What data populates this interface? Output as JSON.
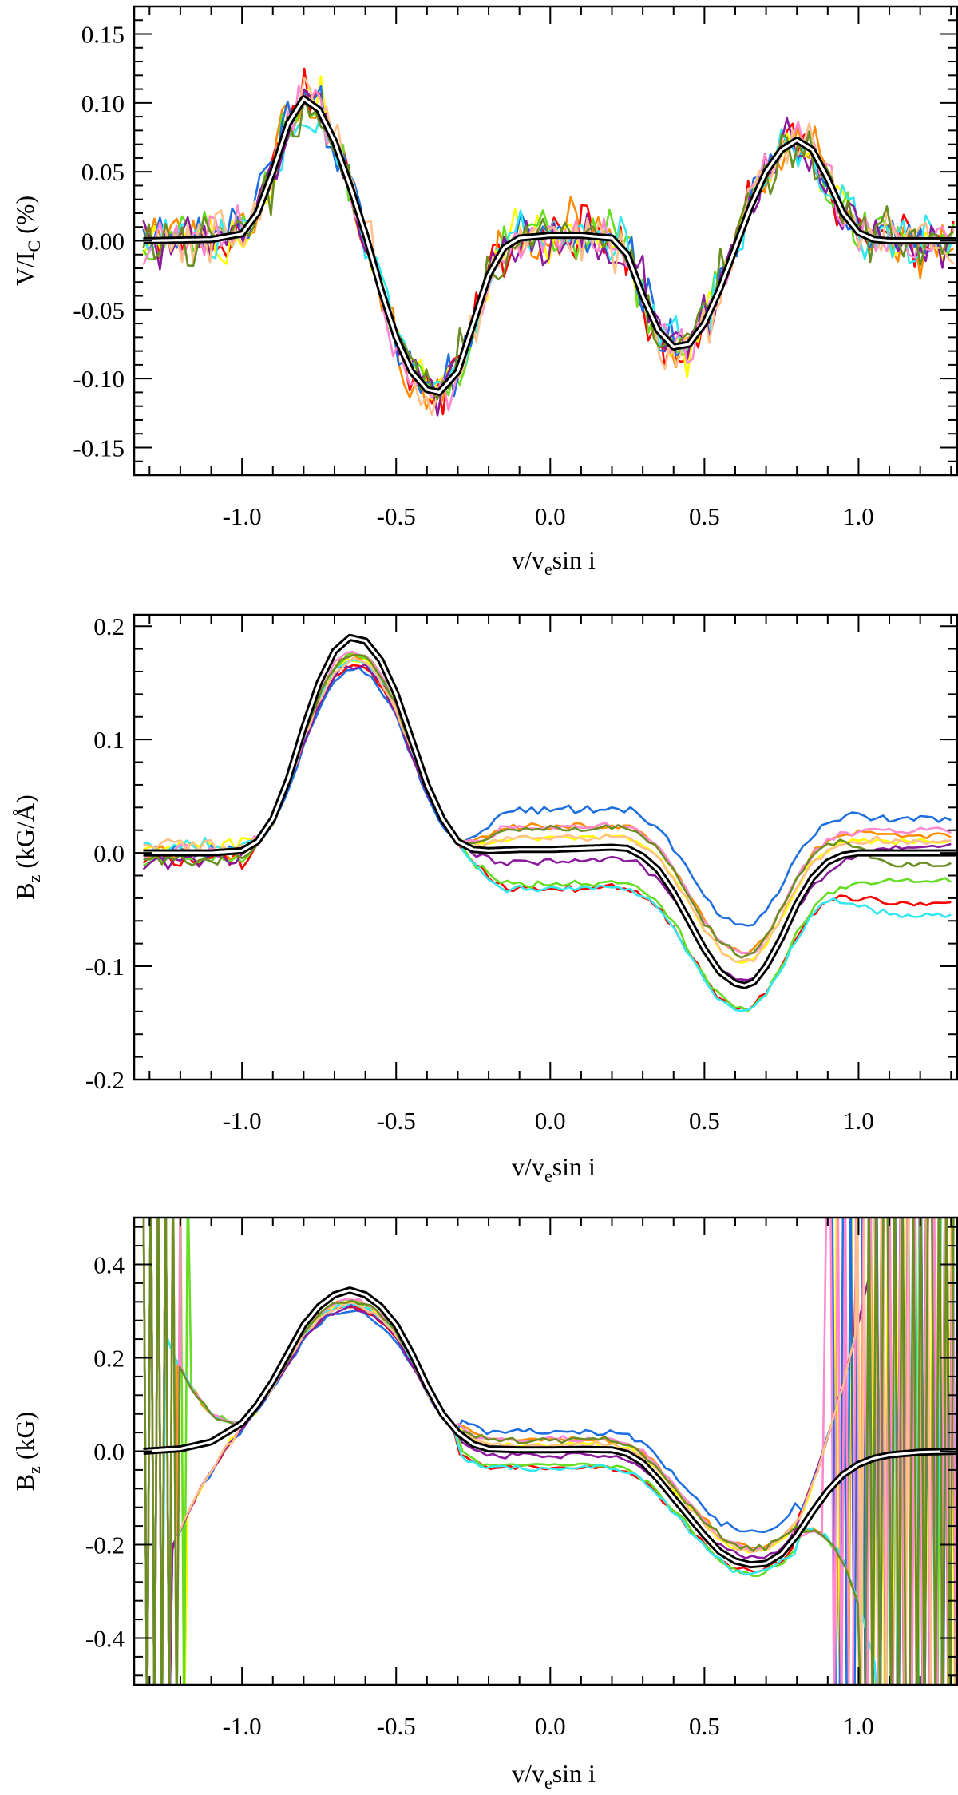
{
  "chart_data": [
    {
      "type": "line",
      "panel": "top",
      "xlabel": {
        "main": "v/v",
        "sub": "e",
        "tail": "sin i"
      },
      "ylabel": {
        "main": "V/I",
        "sub": "C",
        "tail": " (%)"
      },
      "xlim": [
        -1.35,
        1.32
      ],
      "ylim": [
        -0.17,
        0.17
      ],
      "xticks": [
        -1.0,
        -0.5,
        0.0,
        0.5,
        1.0
      ],
      "xtick_labels": [
        "-1.0",
        "-0.5",
        "0.0",
        "0.5",
        "1.0"
      ],
      "yticks": [
        0.15,
        0.1,
        0.05,
        0.0,
        -0.05,
        -0.1,
        -0.15
      ],
      "ytick_labels": [
        "0.15",
        "0.10",
        "0.05",
        "0.00",
        "-0.05",
        "-0.10",
        "-0.15"
      ],
      "grid": false,
      "series": [
        {
          "role": "model",
          "color": "#000000",
          "x": [
            -1.32,
            -1.1,
            -1.0,
            -0.95,
            -0.9,
            -0.85,
            -0.8,
            -0.75,
            -0.7,
            -0.65,
            -0.6,
            -0.55,
            -0.5,
            -0.45,
            -0.4,
            -0.36,
            -0.3,
            -0.25,
            -0.2,
            -0.15,
            -0.1,
            0.0,
            0.1,
            0.2,
            0.25,
            0.3,
            0.35,
            0.4,
            0.45,
            0.5,
            0.55,
            0.6,
            0.65,
            0.7,
            0.75,
            0.8,
            0.85,
            0.9,
            0.95,
            1.0,
            1.05,
            1.1,
            1.32
          ],
          "y": [
            0.0,
            0.001,
            0.005,
            0.02,
            0.05,
            0.085,
            0.103,
            0.095,
            0.072,
            0.04,
            0.005,
            -0.035,
            -0.07,
            -0.095,
            -0.108,
            -0.11,
            -0.095,
            -0.06,
            -0.025,
            -0.005,
            0.002,
            0.004,
            0.004,
            0.002,
            -0.01,
            -0.04,
            -0.065,
            -0.077,
            -0.075,
            -0.06,
            -0.035,
            -0.005,
            0.025,
            0.05,
            0.066,
            0.073,
            0.066,
            0.045,
            0.02,
            0.006,
            0.001,
            0.0,
            0.0
          ]
        },
        {
          "role": "observed",
          "color": "#ff0000"
        },
        {
          "role": "observed",
          "color": "#ff8c00"
        },
        {
          "role": "observed",
          "color": "#ffff00"
        },
        {
          "role": "observed",
          "color": "#66dd22"
        },
        {
          "role": "observed",
          "color": "#1e6fe0"
        },
        {
          "role": "observed",
          "color": "#33e8ee"
        },
        {
          "role": "observed",
          "color": "#8b1a9c"
        },
        {
          "role": "observed",
          "color": "#ff88d0"
        },
        {
          "role": "observed",
          "color": "#ffc08a"
        },
        {
          "role": "observed",
          "color": "#6b8e23"
        }
      ]
    },
    {
      "type": "line",
      "panel": "middle",
      "xlabel": {
        "main": "v/v",
        "sub": "e",
        "tail": "sin i"
      },
      "ylabel": {
        "main": "B",
        "sub": "z",
        "tail": " (kG/Å)"
      },
      "xlim": [
        -1.35,
        1.32
      ],
      "ylim": [
        -0.2,
        0.21
      ],
      "xticks": [
        -1.0,
        -0.5,
        0.0,
        0.5,
        1.0
      ],
      "xtick_labels": [
        "-1.0",
        "-0.5",
        "0.0",
        "0.5",
        "1.0"
      ],
      "yticks": [
        0.2,
        0.1,
        0.0,
        -0.1,
        -0.2
      ],
      "ytick_labels": [
        "0.2",
        "0.1",
        "0.0",
        "-0.1",
        "-0.2"
      ],
      "grid": false,
      "series": [
        {
          "role": "model",
          "color": "#000000",
          "x": [
            -1.32,
            -1.1,
            -1.0,
            -0.95,
            -0.9,
            -0.85,
            -0.8,
            -0.75,
            -0.7,
            -0.65,
            -0.6,
            -0.55,
            -0.5,
            -0.45,
            -0.4,
            -0.35,
            -0.3,
            -0.25,
            -0.2,
            -0.1,
            0.0,
            0.1,
            0.2,
            0.25,
            0.3,
            0.35,
            0.4,
            0.45,
            0.5,
            0.55,
            0.6,
            0.63,
            0.66,
            0.7,
            0.75,
            0.8,
            0.85,
            0.9,
            0.95,
            1.0,
            1.05,
            1.1,
            1.32
          ],
          "y": [
            0.0,
            0.0,
            0.002,
            0.01,
            0.03,
            0.065,
            0.11,
            0.15,
            0.178,
            0.19,
            0.187,
            0.17,
            0.14,
            0.1,
            0.06,
            0.03,
            0.01,
            0.003,
            0.002,
            0.003,
            0.003,
            0.004,
            0.005,
            0.004,
            -0.003,
            -0.015,
            -0.035,
            -0.06,
            -0.085,
            -0.105,
            -0.115,
            -0.117,
            -0.114,
            -0.1,
            -0.075,
            -0.045,
            -0.022,
            -0.008,
            -0.002,
            0.0,
            0.0,
            0.0,
            0.0
          ]
        },
        {
          "role": "observed",
          "color": "#ff0000"
        },
        {
          "role": "observed",
          "color": "#ff8c00"
        },
        {
          "role": "observed",
          "color": "#ffff00"
        },
        {
          "role": "observed",
          "color": "#66dd22"
        },
        {
          "role": "observed",
          "color": "#1e6fe0"
        },
        {
          "role": "observed",
          "color": "#33e8ee"
        },
        {
          "role": "observed",
          "color": "#8b1a9c"
        },
        {
          "role": "observed",
          "color": "#ff88d0"
        },
        {
          "role": "observed",
          "color": "#ffc08a"
        },
        {
          "role": "observed",
          "color": "#6b8e23"
        }
      ]
    },
    {
      "type": "line",
      "panel": "bottom",
      "xlabel": {
        "main": "v/v",
        "sub": "e",
        "tail": "sin i"
      },
      "ylabel": {
        "main": "B",
        "sub": "z",
        "tail": " (kG)"
      },
      "xlim": [
        -1.35,
        1.32
      ],
      "ylim": [
        -0.5,
        0.5
      ],
      "xticks": [
        -1.0,
        -0.5,
        0.0,
        0.5,
        1.0
      ],
      "xtick_labels": [
        "-1.0",
        "-0.5",
        "0.0",
        "0.5",
        "1.0"
      ],
      "yticks": [
        0.4,
        0.2,
        0.0,
        -0.2,
        -0.4
      ],
      "ytick_labels": [
        "0.4",
        "0.2",
        "0.0",
        "-0.2",
        "-0.4"
      ],
      "grid": false,
      "series": [
        {
          "role": "model",
          "color": "#000000",
          "x": [
            -1.32,
            -1.2,
            -1.1,
            -1.0,
            -0.95,
            -0.9,
            -0.85,
            -0.8,
            -0.75,
            -0.7,
            -0.65,
            -0.6,
            -0.55,
            -0.5,
            -0.45,
            -0.4,
            -0.35,
            -0.3,
            -0.25,
            -0.2,
            -0.1,
            0.0,
            0.1,
            0.2,
            0.25,
            0.3,
            0.35,
            0.4,
            0.45,
            0.5,
            0.55,
            0.6,
            0.65,
            0.7,
            0.75,
            0.8,
            0.85,
            0.9,
            0.95,
            1.0,
            1.05,
            1.1,
            1.2,
            1.32
          ],
          "y": [
            0.0,
            0.005,
            0.02,
            0.06,
            0.1,
            0.15,
            0.21,
            0.27,
            0.31,
            0.335,
            0.345,
            0.335,
            0.31,
            0.27,
            0.21,
            0.14,
            0.08,
            0.04,
            0.015,
            0.005,
            0.003,
            0.003,
            0.004,
            0.003,
            -0.005,
            -0.025,
            -0.06,
            -0.1,
            -0.14,
            -0.18,
            -0.215,
            -0.235,
            -0.243,
            -0.24,
            -0.22,
            -0.18,
            -0.13,
            -0.085,
            -0.05,
            -0.028,
            -0.015,
            -0.008,
            -0.002,
            0.0
          ]
        },
        {
          "role": "observed",
          "color": "#ff0000"
        },
        {
          "role": "observed",
          "color": "#ff8c00"
        },
        {
          "role": "observed",
          "color": "#ffff00"
        },
        {
          "role": "observed",
          "color": "#66dd22"
        },
        {
          "role": "observed",
          "color": "#1e6fe0"
        },
        {
          "role": "observed",
          "color": "#33e8ee"
        },
        {
          "role": "observed",
          "color": "#8b1a9c"
        },
        {
          "role": "observed",
          "color": "#ff88d0"
        },
        {
          "role": "observed",
          "color": "#ffc08a"
        },
        {
          "role": "observed",
          "color": "#6b8e23"
        }
      ]
    }
  ]
}
